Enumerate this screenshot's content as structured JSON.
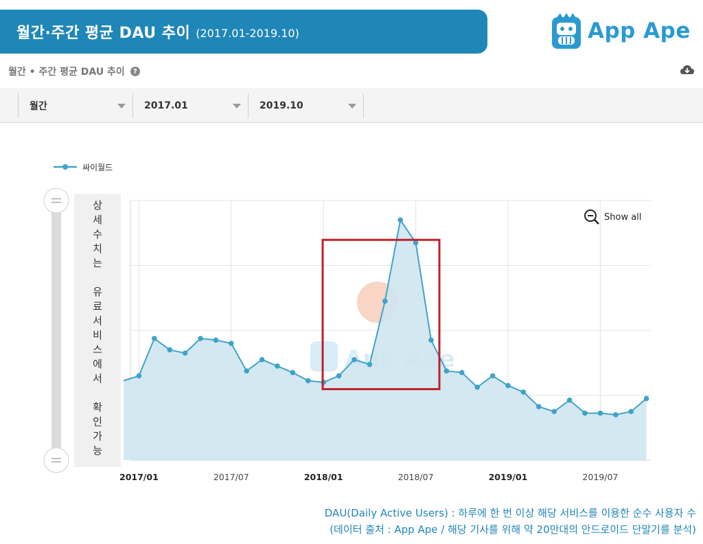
{
  "header": {
    "title": "월간·주간 평균 DAU 추이",
    "range": "(2017.01-2019.10)"
  },
  "logo": {
    "text": "App Ape",
    "watermark": "App Ape",
    "color": "#2b9ad3"
  },
  "subheader": {
    "title": "월간 • 주간 평균 DAU 추이",
    "help_icon": "question-circle-icon",
    "download_icon": "cloud-download-icon"
  },
  "filters": {
    "period": "월간",
    "start": "2017.01",
    "end": "2019.10"
  },
  "chart_data": {
    "type": "area",
    "series": [
      {
        "name": "싸이월드",
        "color": "#3fa3c9",
        "x": [
          "2016-12",
          "2017-01",
          "2017-02",
          "2017-03",
          "2017-04",
          "2017-05",
          "2017-06",
          "2017-07",
          "2017-08",
          "2017-09",
          "2017-10",
          "2017-11",
          "2017-12",
          "2018-01",
          "2018-02",
          "2018-03",
          "2018-04",
          "2018-05",
          "2018-06",
          "2018-07",
          "2018-08",
          "2018-09",
          "2018-10",
          "2018-11",
          "2018-12",
          "2019-01",
          "2019-02",
          "2019-03",
          "2019-04",
          "2019-05",
          "2019-06",
          "2019-07",
          "2019-08",
          "2019-09",
          "2019-10"
        ],
        "values": [
          2.45,
          2.6,
          3.75,
          3.4,
          3.3,
          3.75,
          3.7,
          3.6,
          2.75,
          3.1,
          2.9,
          2.7,
          2.45,
          2.4,
          2.6,
          3.1,
          2.95,
          4.9,
          7.4,
          6.7,
          3.7,
          2.75,
          2.7,
          2.25,
          2.6,
          2.3,
          2.1,
          1.65,
          1.5,
          1.85,
          1.45,
          1.45,
          1.4,
          1.5,
          1.9
        ]
      }
    ],
    "xticks": [
      {
        "label": "2017/01",
        "x": "2017-01",
        "bold": true
      },
      {
        "label": "2017/07",
        "x": "2017-07",
        "bold": false
      },
      {
        "label": "2018/01",
        "x": "2018-01",
        "bold": true
      },
      {
        "label": "2018/07",
        "x": "2018-07",
        "bold": false
      },
      {
        "label": "2019/01",
        "x": "2019-01",
        "bold": true
      },
      {
        "label": "2019/07",
        "x": "2019-07",
        "bold": false
      }
    ],
    "ylim": [
      0,
      8
    ],
    "yticks": [
      2,
      4,
      6,
      8
    ],
    "yticks_labeled": false,
    "grid": true,
    "legend": "top-left",
    "highlight": {
      "from": "2018-03",
      "to": "2018-08",
      "color": "#c0202a"
    },
    "show_all_label": "Show all",
    "show_all_icon": "zoom-out-icon",
    "locked_label": "상세수치는 유료서비스에서 확인가능"
  },
  "footnotes": [
    "DAU(Daily Active Users) : 하루에 한 번 이상 해당 서비스를 이용한 순수 사용자 수",
    "(데이터 출처 : App Ape / 해당 기사를 위해 약 20만대의 안드로이드 단말기를 분석)"
  ]
}
